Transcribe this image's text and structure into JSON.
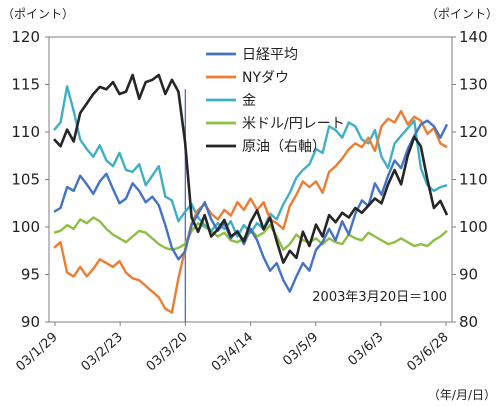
{
  "chart_data": {
    "type": "line",
    "title": "",
    "left_axis": {
      "unit_label": "（ポイント）",
      "ylim": [
        90,
        120
      ],
      "ticks": [
        "90",
        "95",
        "100",
        "105",
        "110",
        "115",
        "120"
      ]
    },
    "right_axis": {
      "unit_label": "（ポイント）",
      "ylim": [
        80,
        140
      ],
      "ticks": [
        "80",
        "90",
        "100",
        "110",
        "120",
        "130",
        "140"
      ]
    },
    "x_tick_labels": [
      "03/1/29",
      "03/2/23",
      "03/3/20",
      "03/4/14",
      "03/5/9",
      "03/6/3",
      "03/6/28"
    ],
    "x_axis_unit": "（年/月/日）",
    "vertical_marker_date": "03/3/20",
    "annotation": "2003年3月20日＝100",
    "grid": false,
    "legend_position": "top-center",
    "series": [
      {
        "name": "日経平均",
        "color": "#4472c4",
        "axis": "left",
        "values": [
          101.6,
          102.0,
          104.2,
          103.8,
          105.4,
          104.5,
          103.5,
          104.8,
          105.6,
          104.0,
          102.5,
          103.0,
          104.6,
          103.8,
          102.6,
          103.2,
          102.3,
          100.2,
          97.8,
          96.6,
          97.4,
          100.2,
          101.4,
          102.6,
          100.8,
          99.6,
          100.4,
          98.8,
          99.6,
          98.2,
          99.8,
          98.6,
          96.8,
          95.4,
          96.2,
          94.4,
          93.2,
          94.8,
          96.2,
          95.4,
          97.6,
          98.4,
          99.8,
          98.6,
          100.6,
          99.2,
          101.4,
          102.8,
          102.2,
          104.6,
          103.4,
          105.4,
          107.0,
          106.2,
          108.2,
          109.6,
          110.8,
          111.2,
          110.6,
          109.4,
          110.8
        ]
      },
      {
        "name": "NYダウ",
        "color": "#ed7d31",
        "axis": "left",
        "values": [
          97.8,
          98.4,
          95.2,
          94.8,
          95.8,
          94.8,
          95.6,
          96.6,
          96.2,
          95.8,
          96.4,
          95.2,
          94.6,
          94.4,
          93.8,
          93.2,
          92.6,
          91.4,
          91.0,
          94.6,
          97.6,
          100.4,
          101.8,
          102.4,
          101.4,
          100.8,
          101.8,
          101.2,
          102.6,
          101.8,
          103.0,
          101.8,
          102.6,
          100.8,
          100.4,
          99.8,
          102.2,
          103.4,
          104.8,
          104.2,
          104.8,
          103.6,
          105.8,
          106.4,
          107.2,
          108.2,
          108.8,
          108.4,
          109.4,
          108.0,
          110.6,
          111.4,
          111.0,
          112.2,
          110.8,
          111.6,
          111.2,
          109.8,
          110.4,
          108.8,
          108.4
        ]
      },
      {
        "name": "金",
        "color": "#3fb0c4",
        "axis": "left",
        "values": [
          110.2,
          111.0,
          114.8,
          112.2,
          109.2,
          108.2,
          107.4,
          108.6,
          107.0,
          106.4,
          107.8,
          106.0,
          105.8,
          106.6,
          104.4,
          105.4,
          106.4,
          103.2,
          102.8,
          100.6,
          101.6,
          102.4,
          101.0,
          100.2,
          99.6,
          100.4,
          99.8,
          100.6,
          99.0,
          100.2,
          99.4,
          100.4,
          99.8,
          101.4,
          100.8,
          102.4,
          103.6,
          105.2,
          106.0,
          106.6,
          108.2,
          107.8,
          110.6,
          110.2,
          109.4,
          111.0,
          110.6,
          109.2,
          108.8,
          110.2,
          107.4,
          106.2,
          108.8,
          109.6,
          110.4,
          111.2,
          106.2,
          104.4,
          103.8,
          104.2,
          104.4
        ]
      },
      {
        "name": "米ドル/円レート",
        "color": "#8cbf44",
        "axis": "left",
        "values": [
          99.4,
          99.6,
          100.2,
          99.8,
          100.8,
          100.4,
          101.0,
          100.6,
          99.8,
          99.2,
          98.8,
          98.4,
          99.0,
          99.6,
          99.4,
          98.8,
          98.2,
          97.8,
          97.6,
          97.8,
          98.2,
          99.6,
          100.4,
          100.0,
          99.6,
          99.0,
          99.4,
          98.6,
          98.4,
          98.8,
          99.8,
          99.0,
          99.4,
          100.2,
          99.0,
          97.6,
          98.2,
          99.2,
          98.6,
          98.4,
          98.8,
          98.2,
          98.8,
          98.4,
          98.2,
          99.2,
          98.8,
          98.6,
          99.4,
          99.0,
          98.6,
          98.2,
          98.4,
          98.8,
          98.4,
          98.0,
          98.2,
          98.0,
          98.6,
          99.0,
          99.6
        ]
      },
      {
        "name": "原油（右軸）",
        "color": "#262626",
        "axis": "right",
        "values": [
          118.5,
          117.0,
          120.5,
          118.0,
          124.0,
          126.0,
          128.0,
          129.5,
          129.0,
          130.5,
          128.0,
          128.5,
          132.0,
          127.0,
          130.5,
          131.0,
          132.0,
          128.0,
          131.0,
          128.5,
          118.0,
          102.0,
          99.0,
          102.5,
          98.0,
          99.5,
          101.5,
          98.0,
          99.0,
          97.0,
          101.0,
          103.5,
          99.5,
          102.0,
          97.0,
          92.5,
          95.0,
          93.5,
          99.0,
          96.0,
          100.5,
          98.0,
          102.5,
          101.0,
          103.0,
          102.0,
          104.0,
          103.0,
          104.5,
          106.0,
          105.0,
          109.0,
          112.0,
          109.0,
          115.0,
          119.0,
          117.0,
          110.0,
          104.0,
          105.5,
          102.5
        ]
      }
    ]
  }
}
